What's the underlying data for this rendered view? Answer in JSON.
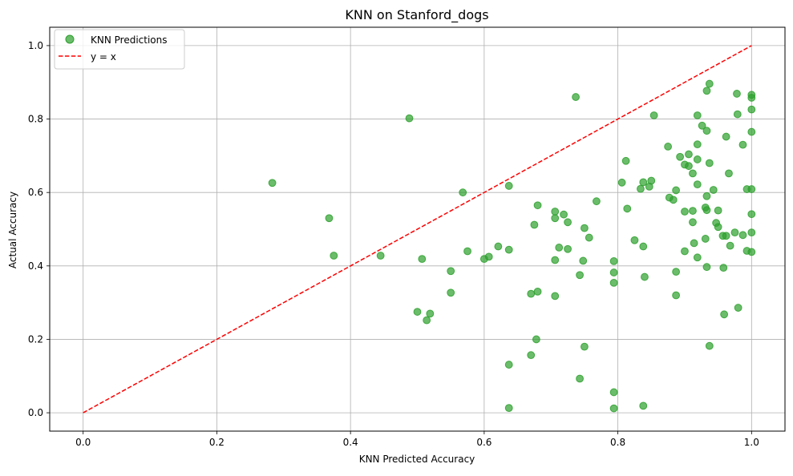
{
  "chart_data": {
    "type": "scatter",
    "title": "KNN on Stanford_dogs",
    "xlabel": "KNN Predicted Accuracy",
    "ylabel": "Actual Accuracy",
    "xlim": [
      -0.05,
      1.05
    ],
    "ylim": [
      -0.05,
      1.05
    ],
    "xticks": [
      0.0,
      0.2,
      0.4,
      0.6,
      0.8,
      1.0
    ],
    "yticks": [
      0.0,
      0.2,
      0.4,
      0.6,
      0.8,
      1.0
    ],
    "xtick_labels": [
      "0.0",
      "0.2",
      "0.4",
      "0.6",
      "0.8",
      "1.0"
    ],
    "ytick_labels": [
      "0.0",
      "0.2",
      "0.4",
      "0.6",
      "0.8",
      "1.0"
    ],
    "grid": true,
    "legend_position": "top-left",
    "series": [
      {
        "name": "KNN Predictions",
        "kind": "scatter",
        "color": "#2ca02c",
        "points": [
          [
            0.283,
            0.626
          ],
          [
            0.368,
            0.53
          ],
          [
            0.375,
            0.428
          ],
          [
            0.445,
            0.428
          ],
          [
            0.488,
            0.802
          ],
          [
            0.5,
            0.275
          ],
          [
            0.507,
            0.419
          ],
          [
            0.514,
            0.252
          ],
          [
            0.519,
            0.27
          ],
          [
            0.55,
            0.386
          ],
          [
            0.55,
            0.327
          ],
          [
            0.568,
            0.6
          ],
          [
            0.575,
            0.44
          ],
          [
            0.6,
            0.419
          ],
          [
            0.607,
            0.425
          ],
          [
            0.621,
            0.453
          ],
          [
            0.637,
            0.618
          ],
          [
            0.637,
            0.444
          ],
          [
            0.637,
            0.131
          ],
          [
            0.637,
            0.013
          ],
          [
            0.67,
            0.324
          ],
          [
            0.67,
            0.157
          ],
          [
            0.675,
            0.512
          ],
          [
            0.678,
            0.2
          ],
          [
            0.68,
            0.565
          ],
          [
            0.68,
            0.33
          ],
          [
            0.706,
            0.548
          ],
          [
            0.706,
            0.53
          ],
          [
            0.706,
            0.416
          ],
          [
            0.706,
            0.318
          ],
          [
            0.712,
            0.45
          ],
          [
            0.719,
            0.54
          ],
          [
            0.725,
            0.519
          ],
          [
            0.725,
            0.446
          ],
          [
            0.737,
            0.86
          ],
          [
            0.743,
            0.375
          ],
          [
            0.743,
            0.093
          ],
          [
            0.748,
            0.414
          ],
          [
            0.75,
            0.503
          ],
          [
            0.75,
            0.18
          ],
          [
            0.757,
            0.477
          ],
          [
            0.768,
            0.576
          ],
          [
            0.794,
            0.413
          ],
          [
            0.794,
            0.382
          ],
          [
            0.794,
            0.354
          ],
          [
            0.794,
            0.056
          ],
          [
            0.794,
            0.012
          ],
          [
            0.806,
            0.627
          ],
          [
            0.812,
            0.686
          ],
          [
            0.814,
            0.556
          ],
          [
            0.825,
            0.47
          ],
          [
            0.834,
            0.61
          ],
          [
            0.838,
            0.628
          ],
          [
            0.838,
            0.453
          ],
          [
            0.838,
            0.019
          ],
          [
            0.84,
            0.37
          ],
          [
            0.847,
            0.616
          ],
          [
            0.85,
            0.632
          ],
          [
            0.854,
            0.81
          ],
          [
            0.875,
            0.725
          ],
          [
            0.877,
            0.586
          ],
          [
            0.883,
            0.58
          ],
          [
            0.887,
            0.606
          ],
          [
            0.887,
            0.384
          ],
          [
            0.887,
            0.32
          ],
          [
            0.893,
            0.697
          ],
          [
            0.9,
            0.676
          ],
          [
            0.9,
            0.548
          ],
          [
            0.9,
            0.44
          ],
          [
            0.906,
            0.704
          ],
          [
            0.906,
            0.672
          ],
          [
            0.912,
            0.652
          ],
          [
            0.912,
            0.55
          ],
          [
            0.912,
            0.519
          ],
          [
            0.914,
            0.462
          ],
          [
            0.919,
            0.81
          ],
          [
            0.919,
            0.731
          ],
          [
            0.919,
            0.69
          ],
          [
            0.919,
            0.622
          ],
          [
            0.919,
            0.423
          ],
          [
            0.926,
            0.782
          ],
          [
            0.931,
            0.559
          ],
          [
            0.931,
            0.474
          ],
          [
            0.933,
            0.877
          ],
          [
            0.933,
            0.768
          ],
          [
            0.933,
            0.59
          ],
          [
            0.933,
            0.552
          ],
          [
            0.933,
            0.397
          ],
          [
            0.937,
            0.896
          ],
          [
            0.937,
            0.68
          ],
          [
            0.937,
            0.182
          ],
          [
            0.943,
            0.607
          ],
          [
            0.947,
            0.517
          ],
          [
            0.95,
            0.506
          ],
          [
            0.95,
            0.551
          ],
          [
            0.957,
            0.482
          ],
          [
            0.958,
            0.395
          ],
          [
            0.959,
            0.268
          ],
          [
            0.962,
            0.752
          ],
          [
            0.962,
            0.482
          ],
          [
            0.966,
            0.652
          ],
          [
            0.968,
            0.455
          ],
          [
            0.975,
            0.491
          ],
          [
            0.978,
            0.869
          ],
          [
            0.979,
            0.813
          ],
          [
            0.98,
            0.286
          ],
          [
            0.987,
            0.73
          ],
          [
            0.987,
            0.484
          ],
          [
            0.993,
            0.609
          ],
          [
            0.993,
            0.441
          ],
          [
            1.0,
            0.866
          ],
          [
            1.0,
            0.858
          ],
          [
            1.0,
            0.826
          ],
          [
            1.0,
            0.765
          ],
          [
            1.0,
            0.609
          ],
          [
            1.0,
            0.541
          ],
          [
            1.0,
            0.491
          ],
          [
            1.0,
            0.438
          ]
        ]
      },
      {
        "name": "y = x",
        "kind": "line",
        "style": "dashed",
        "color": "#ff0000",
        "points": [
          [
            0.0,
            0.0
          ],
          [
            1.0,
            1.0
          ]
        ]
      }
    ]
  }
}
